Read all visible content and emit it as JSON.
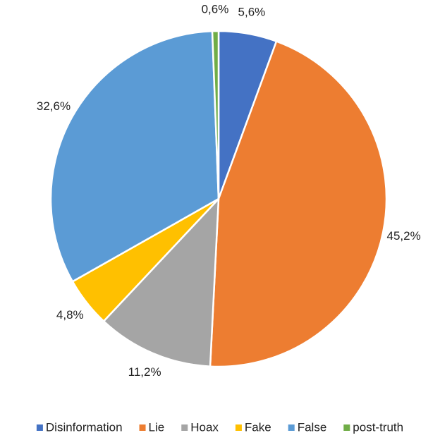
{
  "chart_data": {
    "type": "pie",
    "categories": [
      "Disinformation",
      "Lie",
      "Hoax",
      "Fake",
      "False",
      "post-truth"
    ],
    "values": [
      5.6,
      45.2,
      11.2,
      4.8,
      32.6,
      0.6
    ],
    "value_labels": [
      "5,6%",
      "45,2%",
      "11,2%",
      "4,8%",
      "32,6%",
      "0,6%"
    ],
    "colors": [
      "#4472c4",
      "#ed7d31",
      "#a5a5a5",
      "#ffc000",
      "#5b9bd5",
      "#70ad47"
    ],
    "legend": "bottom"
  }
}
